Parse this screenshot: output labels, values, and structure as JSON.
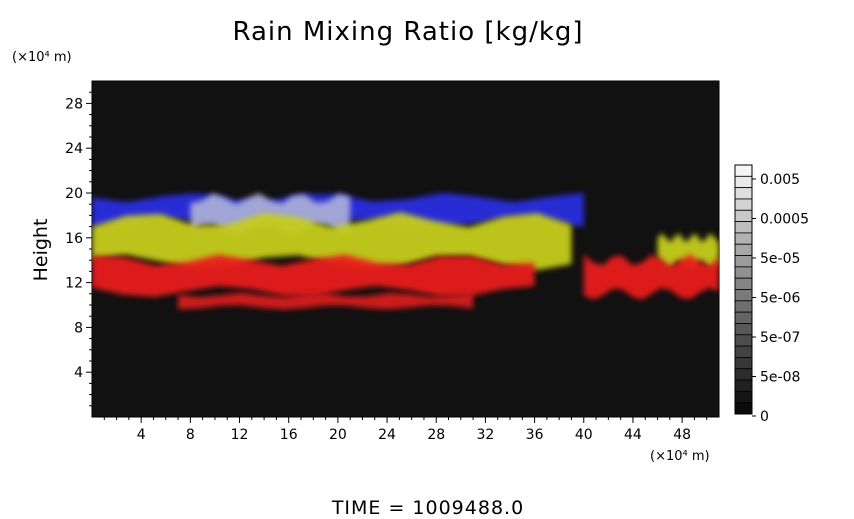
{
  "chart_data": {
    "type": "heatmap",
    "title": "Rain Mixing Ratio [kg/kg]",
    "ylabel": "Height",
    "xlabel": "",
    "y_unit": "(×10⁴ m)",
    "x_unit": "(×10⁴ m)",
    "xlim": [
      0,
      51
    ],
    "ylim": [
      0,
      30
    ],
    "x_ticks": [
      4,
      8,
      12,
      16,
      20,
      24,
      28,
      32,
      36,
      40,
      44,
      48
    ],
    "y_ticks": [
      4,
      8,
      12,
      16,
      20,
      24,
      28
    ],
    "colorbar": {
      "labels": [
        "0.005",
        "0.0005",
        "5e-05",
        "5e-06",
        "5e-07",
        "5e-08",
        "0"
      ]
    },
    "bands": [
      {
        "color": "#2a2ee0",
        "y_bottom": 17.3,
        "y_top": 19.6,
        "x_start": 0,
        "x_end": 40
      },
      {
        "color": "#a8acd8",
        "y_bottom": 16.8,
        "y_top": 19.5,
        "x_start": 8,
        "x_end": 21
      },
      {
        "color": "#c6cd1c",
        "y_bottom": 13.8,
        "y_top": 17.6,
        "x_start": 0,
        "x_end": 39
      },
      {
        "color": "#c6cd1c",
        "y_bottom": 13.6,
        "y_top": 16.0,
        "x_start": 46,
        "x_end": 51
      },
      {
        "color": "#e81d1b",
        "y_bottom": 11.2,
        "y_top": 14.0,
        "x_start": 0,
        "x_end": 36
      },
      {
        "color": "#e81d1b",
        "y_bottom": 11.0,
        "y_top": 14.0,
        "x_start": 40,
        "x_end": 51
      },
      {
        "color": "#d81c1a",
        "y_bottom": 9.8,
        "y_top": 10.9,
        "x_start": 7,
        "x_end": 31
      }
    ],
    "background": "#111111"
  },
  "time_label": "TIME  =  1009488.0"
}
